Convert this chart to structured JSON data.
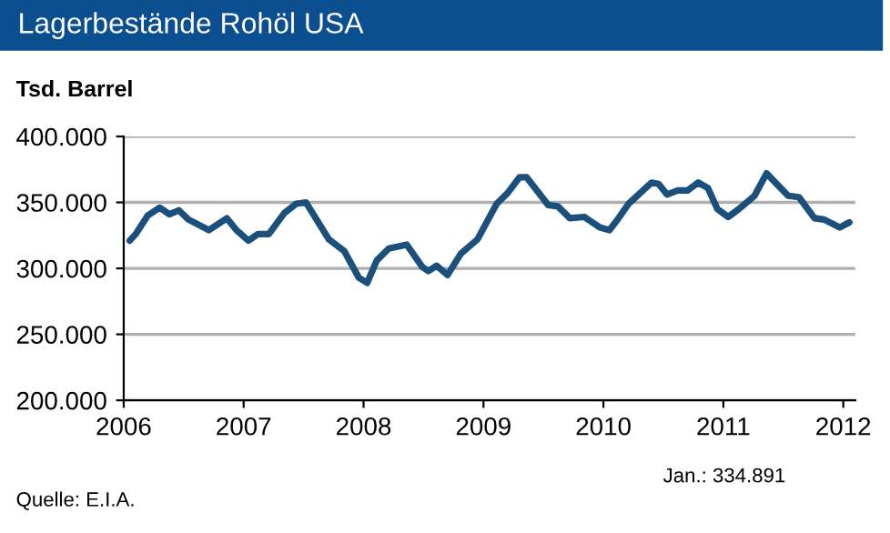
{
  "chart_data": {
    "type": "line",
    "title": "Lagerbestände Rohöl USA",
    "ylabel": "Tsd. Barrel",
    "annotations": [
      "Jan.: 334.891",
      "Quelle: E.I.A."
    ],
    "x": [
      2006.05,
      2006.1,
      2006.2,
      2006.3,
      2006.38,
      2006.46,
      2006.54,
      2006.71,
      2006.86,
      2006.94,
      2007.04,
      2007.12,
      2007.21,
      2007.34,
      2007.44,
      2007.52,
      2007.71,
      2007.84,
      2007.96,
      2008.03,
      2008.11,
      2008.21,
      2008.36,
      2008.49,
      2008.54,
      2008.61,
      2008.7,
      2008.81,
      2008.95,
      2009.11,
      2009.2,
      2009.3,
      2009.36,
      2009.54,
      2009.62,
      2009.72,
      2009.84,
      2009.97,
      2010.05,
      2010.11,
      2010.21,
      2010.4,
      2010.46,
      2010.53,
      2010.62,
      2010.7,
      2010.79,
      2010.87,
      2010.95,
      2011.04,
      2011.13,
      2011.26,
      2011.36,
      2011.54,
      2011.63,
      2011.76,
      2011.84,
      2011.97,
      2012.05
    ],
    "series": [
      {
        "color": "#1b4f7c",
        "values": [
          321000,
          326000,
          340000,
          346000,
          341000,
          344000,
          337000,
          329000,
          338000,
          329000,
          321000,
          326000,
          326000,
          342000,
          349000,
          350000,
          322000,
          313000,
          293000,
          289000,
          306000,
          315000,
          318000,
          301000,
          298000,
          302000,
          295000,
          311000,
          322000,
          349000,
          357000,
          369000,
          369000,
          348000,
          347000,
          338000,
          339000,
          331000,
          329000,
          336000,
          349000,
          365000,
          364000,
          356000,
          359000,
          359000,
          365000,
          361000,
          345000,
          339000,
          345000,
          355000,
          372000,
          355000,
          354000,
          338000,
          337000,
          331000,
          334891
        ]
      }
    ],
    "xlim": [
      2006,
      2012.1
    ],
    "xticks": [
      2006,
      2007,
      2008,
      2009,
      2010,
      2011,
      2012
    ],
    "ylim": [
      200000,
      400000
    ],
    "yticks": [
      {
        "value": 200000,
        "label": "200.000"
      },
      {
        "value": 250000,
        "label": "250.000"
      },
      {
        "value": 300000,
        "label": "300.000"
      },
      {
        "value": 350000,
        "label": "350.000"
      },
      {
        "value": 400000,
        "label": "400.000"
      }
    ],
    "grid": "y",
    "legend": false,
    "marker": "none",
    "line_style": "solid"
  }
}
